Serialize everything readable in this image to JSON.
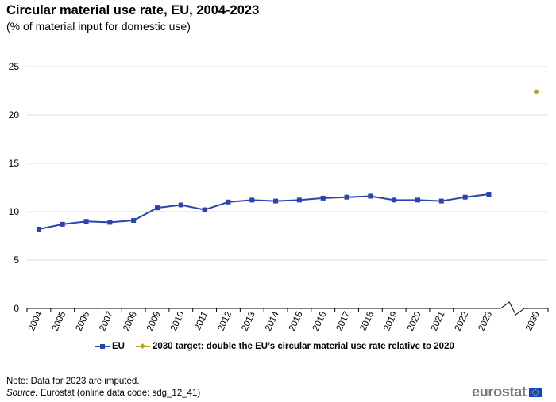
{
  "chart_data": {
    "type": "line",
    "title": "Circular material use rate, EU, 2004-2023",
    "subtitle": "(% of material input for domestic use)",
    "categories": [
      "2004",
      "2005",
      "2006",
      "2007",
      "2008",
      "2009",
      "2010",
      "2011",
      "2012",
      "2013",
      "2014",
      "2015",
      "2016",
      "2017",
      "2018",
      "2019",
      "2020",
      "2021",
      "2022",
      "2023",
      "",
      "2030"
    ],
    "series": [
      {
        "name": "EU",
        "color": "#2a44ad",
        "values": [
          8.2,
          8.7,
          9.0,
          8.9,
          9.1,
          10.4,
          10.7,
          10.2,
          11.0,
          11.2,
          11.1,
          11.2,
          11.4,
          11.5,
          11.6,
          11.2,
          11.2,
          11.1,
          11.5,
          11.8,
          null,
          null
        ]
      },
      {
        "name": "2030 target: double the EU’s circular material use rate relative to 2020",
        "color": "#b9a32b",
        "values": [
          null,
          null,
          null,
          null,
          null,
          null,
          null,
          null,
          null,
          null,
          null,
          null,
          null,
          null,
          null,
          null,
          null,
          null,
          null,
          null,
          null,
          22.4
        ]
      }
    ],
    "yticks": [
      0,
      5,
      10,
      15,
      20,
      25
    ],
    "ylim": [
      0,
      25
    ],
    "grid": true,
    "axis_break": true,
    "legend_position": "bottom"
  },
  "footer": {
    "note": "Note: Data for 2023 are imputed.",
    "source_label": "Source:",
    "source_text": " Eurostat (online data code: sdg_12_41)",
    "logo_text": "eurostat"
  }
}
